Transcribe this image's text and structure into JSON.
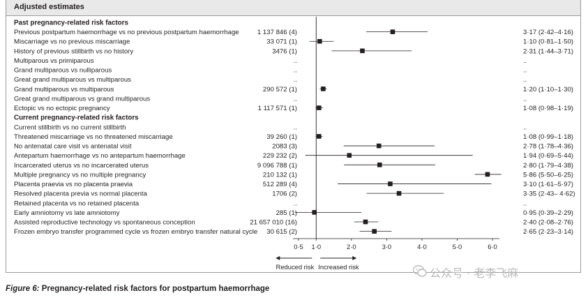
{
  "panel_title": "Adjusted estimates",
  "caption": {
    "label": "Figure 6:",
    "title": "Pregnancy-related risk factors for postpartum haemorrhage"
  },
  "watermark": "公众号 · 老李飞麻",
  "chart_data": {
    "type": "forest",
    "xlabel": "",
    "xticks": [
      "0·5",
      "1·0",
      "2·0",
      "3·0",
      "4·0",
      "5·0",
      "6·0"
    ],
    "xtick_values": [
      0.5,
      1.0,
      2.0,
      3.0,
      4.0,
      5.0,
      6.0
    ],
    "reference_value": 1.0,
    "arrow_left_label": "Reduced risk",
    "arrow_right_label": "Increased risk",
    "rows": [
      {
        "kind": "heading",
        "label": "Past pregnancy-related risk factors"
      },
      {
        "kind": "row",
        "label": "Previous postpartum haemorrhage vs no previous postpartum haemorrhage",
        "n": "1 137 846 (4)",
        "est": 3.17,
        "lo": 2.42,
        "hi": 4.16,
        "text": "3·17 (2·42–4·16)"
      },
      {
        "kind": "row",
        "label": "Miscarriage vs no previous miscarriage",
        "n": "33 071 (1)",
        "est": 1.1,
        "lo": 0.81,
        "hi": 1.5,
        "text": "1·10 (0·81–1·50)"
      },
      {
        "kind": "row",
        "label": "History of previous stillbirth vs no history",
        "n": "3476 (1)",
        "est": 2.31,
        "lo": 1.44,
        "hi": 3.71,
        "text": "2·31 (1·44–3·71)"
      },
      {
        "kind": "row",
        "label": "Multiparous vs primiparous",
        "n": "..",
        "est": null,
        "text": ".."
      },
      {
        "kind": "row",
        "label": "Grand multiparous vs nulliparous",
        "n": "..",
        "est": null,
        "text": ".."
      },
      {
        "kind": "row",
        "label": "Great grand multiparous vs multiparous",
        "n": "..",
        "est": null,
        "text": ".."
      },
      {
        "kind": "row",
        "label": "Grand multiparous vs multiparous",
        "n": "290 572 (1)",
        "est": 1.2,
        "lo": 1.1,
        "hi": 1.3,
        "text": "1·20 (1·10–1·30)"
      },
      {
        "kind": "row",
        "label": "Great grand multiparous vs grand multiparous",
        "n": "..",
        "est": null,
        "text": ".."
      },
      {
        "kind": "row",
        "label": "Ectopic vs no ectopic pregnancy",
        "n": "1 117 571 (1)",
        "est": 1.08,
        "lo": 0.98,
        "hi": 1.19,
        "text": "1·08 (0·98–1·19)"
      },
      {
        "kind": "heading",
        "label": "Current pregnancy-related risk factors"
      },
      {
        "kind": "row",
        "label": "Current stillbirth vs no current stillbirth",
        "n": "..",
        "est": null,
        "text": ".."
      },
      {
        "kind": "row",
        "label": "Threatened miscarriage vs no threatened miscarriage",
        "n": "39 260 (1)",
        "est": 1.08,
        "lo": 0.99,
        "hi": 1.18,
        "text": "1·08 (0·99–1·18)"
      },
      {
        "kind": "row",
        "label": "No antenatal care visit vs antenatal visit",
        "n": "2083 (3)",
        "est": 2.78,
        "lo": 1.78,
        "hi": 4.36,
        "text": "2·78 (1·78–4·36)"
      },
      {
        "kind": "row",
        "label": "Antepartum haemorrhage vs no antepartum haemorrhage",
        "n": "229 232 (2)",
        "est": 1.94,
        "lo": 0.69,
        "hi": 5.44,
        "text": "1·94 (0·69–5·44)"
      },
      {
        "kind": "row",
        "label": "Incarcerated uterus vs no incarcerated uterus",
        "n": "9 096 788 (1)",
        "est": 2.8,
        "lo": 1.79,
        "hi": 4.38,
        "text": "2·80 (1·79–4·38)"
      },
      {
        "kind": "row",
        "label": "Multiple pregnancy vs no multiple pregnancy",
        "n": "210 132 (1)",
        "est": 5.86,
        "lo": 5.5,
        "hi": 6.25,
        "text": "5·86 (5·50–6·25)"
      },
      {
        "kind": "row",
        "label": "Placenta praevia vs no placenta praevia",
        "n": "512 289 (4)",
        "est": 3.1,
        "lo": 1.61,
        "hi": 5.97,
        "text": "3·10 (1·61–5·97)"
      },
      {
        "kind": "row",
        "label": "Resolved placenta previa vs normal placenta",
        "n": "1706 (2)",
        "est": 3.35,
        "lo": 2.43,
        "hi": 4.62,
        "text": "3·35 (2·43– 4·62)"
      },
      {
        "kind": "row",
        "label": "Retained placenta vs no retained placenta",
        "n": "..",
        "est": null,
        "text": ".."
      },
      {
        "kind": "row",
        "label": "Early amniotomy vs late amniotomy",
        "n": "285 (1)",
        "est": 0.95,
        "lo": 0.39,
        "hi": 2.29,
        "text": "0·95 (0·39–2·29)"
      },
      {
        "kind": "row",
        "label": "Assisted reproductive technology vs spontaneous conception",
        "n": "21 657 010 (16)",
        "est": 2.4,
        "lo": 2.08,
        "hi": 2.76,
        "text": "2·40 (2·08–2·76)"
      },
      {
        "kind": "row",
        "label": "Frozen embryo transfer programmed cycle vs frozen embryo transfer natural cycle",
        "n": "30 615 (2)",
        "est": 2.65,
        "lo": 2.23,
        "hi": 3.14,
        "text": "2·65 (2·23–3·14)"
      }
    ]
  }
}
